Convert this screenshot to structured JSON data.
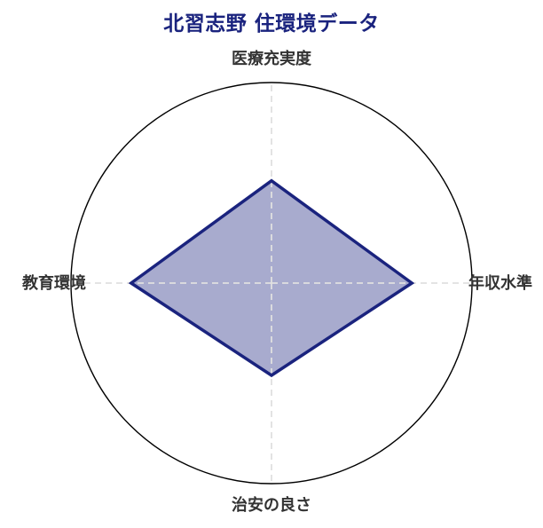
{
  "title": {
    "text": "北習志野 住環境データ"
  },
  "chart_data": {
    "type": "radar",
    "title": "北習志野 住環境データ",
    "categories": [
      "医療充実度",
      "年収水準",
      "治安の良さ",
      "教育環境"
    ],
    "series": [
      {
        "name": "北習志野",
        "values": [
          51,
          70,
          46,
          70
        ]
      }
    ],
    "rlim": [
      0,
      100
    ],
    "axis_angles_deg": [
      90,
      0,
      270,
      180
    ],
    "grid": {
      "radial_tick_labels": false,
      "outer_circle": true,
      "axis_lines": "dashed"
    },
    "legend": "none",
    "colors": {
      "title": "#1a237e",
      "series_stroke": "#1a237e",
      "series_fill": "rgba(26,35,126,0.38)",
      "outer_circle": "#000000",
      "gridline": "#e0e0e0",
      "axis_label": "#333333"
    }
  }
}
